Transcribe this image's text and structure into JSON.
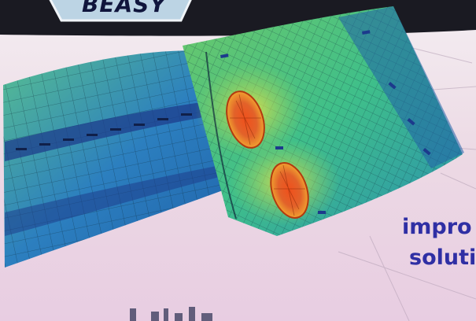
{
  "logo": {
    "text": "BEASY"
  },
  "caption": {
    "line1": "impro",
    "line2": "soluti"
  },
  "colors": {
    "background": "#ead6e0",
    "header_band": "#1a1a22",
    "logo_fill": "#bcd4e4",
    "caption": "#2f2fa4",
    "mesh_low": "#2f5fae",
    "mesh_mid": "#3fbf8a",
    "mesh_high": "#e24c1e"
  },
  "icons": [
    "beasy-logo-icon",
    "stress-mesh-icon",
    "machinery-icon"
  ]
}
